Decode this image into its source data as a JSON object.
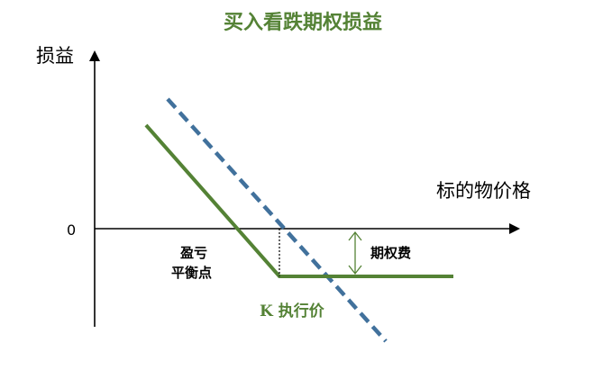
{
  "diagram": {
    "title": "买入看跌期权损益",
    "y_axis_label": "损益",
    "x_axis_label": "标的物价格",
    "zero_label": "0",
    "breakeven_label_line1": "盈亏",
    "breakeven_label_line2": "平衡点",
    "premium_label": "期权费",
    "strike_label": "K 执行价"
  },
  "colors": {
    "title": "#548235",
    "payoff_line": "#548235",
    "strike_label": "#548235",
    "dashed_line": "#41719C",
    "premium_arrow": "#548235",
    "axis": "#000000"
  }
}
